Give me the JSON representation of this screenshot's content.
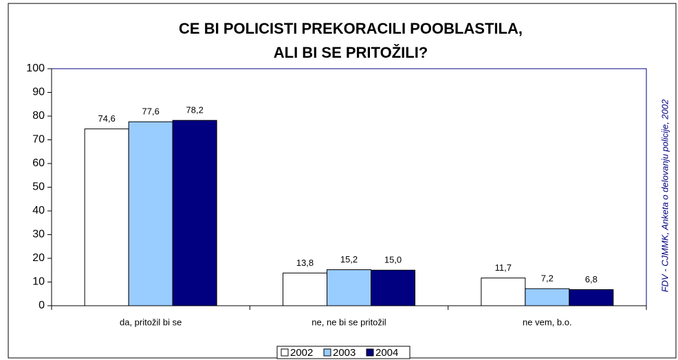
{
  "chart_data": {
    "type": "bar",
    "title_lines": [
      "CE BI POLICISTI  PREKORACILI POOBLASTILA,",
      "ALI BI SE PRITOŽILI?"
    ],
    "source": "FDV - CJMMK, Anketa o delovanju policije, 2002",
    "categories": [
      "da, pritožil bi se",
      "ne, ne bi se pritožil",
      "ne vem, b.o."
    ],
    "series": [
      {
        "name": "2002",
        "color": "#ffffff",
        "values": [
          74.6,
          13.8,
          11.7
        ],
        "value_labels": [
          "74,6",
          "13,8",
          "11,7"
        ]
      },
      {
        "name": "2003",
        "color": "#99ccff",
        "values": [
          77.6,
          15.2,
          7.2
        ],
        "value_labels": [
          "77,6",
          "15,2",
          "7,2"
        ]
      },
      {
        "name": "2004",
        "color": "#000080",
        "values": [
          78.2,
          15.0,
          6.8
        ],
        "value_labels": [
          "78,2",
          "15,0",
          "6,8"
        ]
      }
    ],
    "ylim": [
      0,
      100
    ],
    "yticks": [
      0,
      10,
      20,
      30,
      40,
      50,
      60,
      70,
      80,
      90,
      100
    ],
    "legend": "bottom"
  }
}
